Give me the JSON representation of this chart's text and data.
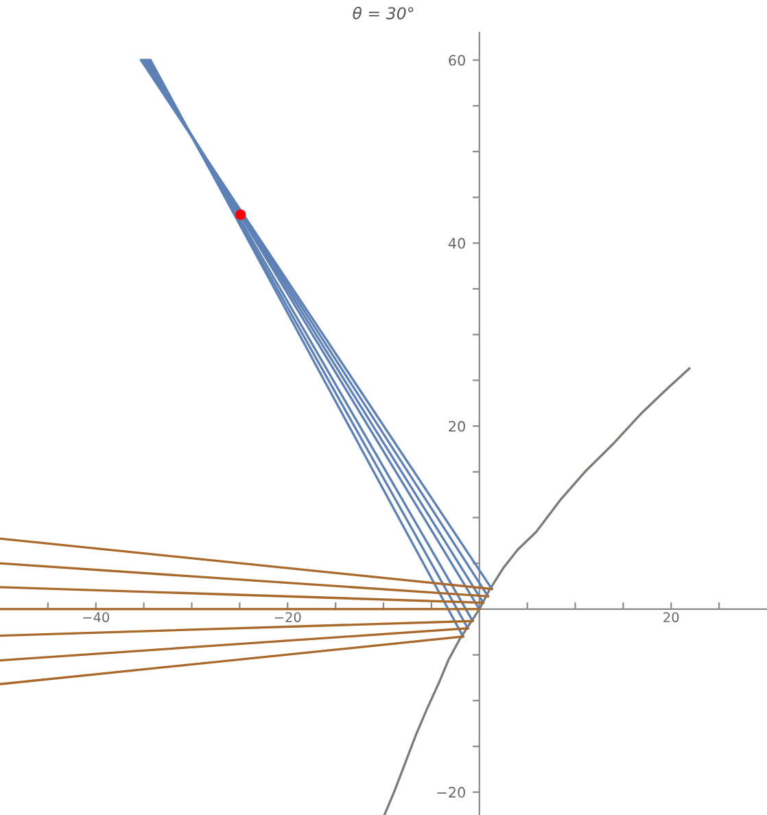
{
  "chart_data": {
    "type": "line",
    "title": "θ = 30°",
    "xlim": [
      -50,
      30
    ],
    "ylim": [
      -22.5,
      63
    ],
    "xticks": [
      {
        "value": -45,
        "label": null
      },
      -40,
      {
        "value": -35,
        "label": null
      },
      {
        "value": -30,
        "label": null
      },
      {
        "value": -25,
        "label": null
      },
      -20,
      {
        "value": -15,
        "label": null
      },
      {
        "value": -10,
        "label": null
      },
      {
        "value": -5,
        "label": null
      },
      {
        "value": 5,
        "label": null
      },
      {
        "value": 10,
        "label": null
      },
      {
        "value": 15,
        "label": null
      },
      20,
      {
        "value": 25,
        "label": null
      }
    ],
    "yticks": [
      -20,
      {
        "value": -15,
        "label": null
      },
      {
        "value": -10,
        "label": null
      },
      {
        "value": -5,
        "label": null
      },
      {
        "value": 5,
        "label": null
      },
      {
        "value": 10,
        "label": null
      },
      {
        "value": 15,
        "label": null
      },
      20,
      {
        "value": 25,
        "label": null
      },
      {
        "value": 30,
        "label": null
      },
      {
        "value": 35,
        "label": null
      },
      40,
      {
        "value": 45,
        "label": null
      },
      {
        "value": 50,
        "label": null
      },
      {
        "value": 55,
        "label": null
      },
      60
    ],
    "grid": false,
    "legend": false,
    "marker": "none",
    "line_style": "solid",
    "series": [
      {
        "color": "#7f7a75",
        "x": [
          -9.9,
          -8.9,
          -7.8,
          -6.6,
          -5.5,
          -4.2,
          -3.2,
          -2.0,
          0,
          1.0,
          2.5,
          4.0,
          5.9,
          8.5,
          11.1,
          13.9,
          16.9,
          19.5,
          21.9
        ],
        "values": [
          -22.5,
          -20.0,
          -17.0,
          -13.7,
          -11.0,
          -8.0,
          -5.5,
          -3.2,
          0,
          2.0,
          4.5,
          6.5,
          8.4,
          12.0,
          15.1,
          18.0,
          21.4,
          24.0,
          26.3
        ]
      },
      {
        "color": "#5e81b5",
        "x": [
          -35.3,
          1.3
        ],
        "values": [
          60,
          2.2
        ]
      },
      {
        "color": "#5e81b5",
        "x": [
          -35.1,
          0.9
        ],
        "values": [
          60,
          1.4
        ]
      },
      {
        "color": "#5e81b5",
        "x": [
          -34.9,
          0.4
        ],
        "values": [
          60,
          0.7
        ]
      },
      {
        "color": "#5e81b5",
        "x": [
          -34.8,
          0
        ],
        "values": [
          60,
          0
        ]
      },
      {
        "color": "#5e81b5",
        "x": [
          -34.6,
          -0.7
        ],
        "values": [
          60,
          -1.3
        ]
      },
      {
        "color": "#5e81b5",
        "x": [
          -34.5,
          -1.2
        ],
        "values": [
          60,
          -2.1
        ]
      },
      {
        "color": "#5e81b5",
        "x": [
          -34.3,
          -1.7
        ],
        "values": [
          60,
          -3.0
        ]
      },
      {
        "color": "#a8692a",
        "x": [
          1.3,
          -50
        ],
        "values": [
          2.2,
          7.7
        ]
      },
      {
        "color": "#a8692a",
        "x": [
          0.9,
          -50
        ],
        "values": [
          1.4,
          5.0
        ]
      },
      {
        "color": "#a8692a",
        "x": [
          0.4,
          -50
        ],
        "values": [
          0.7,
          2.4
        ]
      },
      {
        "color": "#a8692a",
        "x": [
          0,
          -50
        ],
        "values": [
          0,
          0
        ]
      },
      {
        "color": "#a8692a",
        "x": [
          -0.7,
          -50
        ],
        "values": [
          -1.3,
          -2.9
        ]
      },
      {
        "color": "#a8692a",
        "x": [
          -1.2,
          -50
        ],
        "values": [
          -2.1,
          -5.6
        ]
      },
      {
        "color": "#a8692a",
        "x": [
          -1.7,
          -50
        ],
        "values": [
          -3.0,
          -8.2
        ]
      },
      {
        "type": "scatter",
        "marker": "circle",
        "color": "#ff0000",
        "x": [
          -24.9
        ],
        "values": [
          43.1
        ]
      }
    ]
  }
}
